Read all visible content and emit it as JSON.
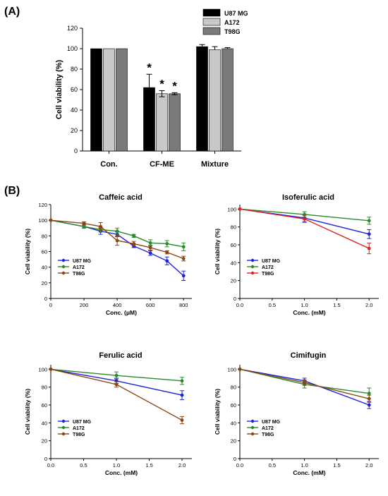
{
  "panels": {
    "a": "(A)",
    "b": "(B)"
  },
  "chart_data": [
    {
      "type": "bar",
      "title": "",
      "xlabel": "",
      "ylabel": "Cell viability (%)",
      "ylim": [
        0,
        120
      ],
      "yticks": [
        0,
        20,
        40,
        60,
        80,
        100,
        120
      ],
      "categories": [
        "Con.",
        "CF-ME",
        "Mixture"
      ],
      "series": [
        {
          "name": "U87 MG",
          "color": "#000000",
          "values": [
            100,
            62,
            102
          ],
          "errors": [
            0,
            13,
            2
          ]
        },
        {
          "name": "A172",
          "color": "#c8c8c8",
          "values": [
            100,
            56,
            99
          ],
          "errors": [
            0,
            3,
            3
          ]
        },
        {
          "name": "T98G",
          "color": "#7a7a7a",
          "values": [
            100,
            56,
            100
          ],
          "errors": [
            0,
            1,
            1
          ]
        }
      ],
      "annotations": [
        "*",
        "*",
        "*"
      ],
      "legend": "top-right"
    },
    {
      "type": "line",
      "title": "Caffeic acid",
      "xlabel": "Conc. (μM)",
      "ylabel": "Cell viability (%)",
      "xlim": [
        0,
        850
      ],
      "ylim": [
        0,
        120
      ],
      "xticks": [
        0,
        200,
        400,
        600,
        800
      ],
      "yticks": [
        0,
        20,
        40,
        60,
        80,
        100,
        120
      ],
      "x": [
        0,
        200,
        300,
        400,
        500,
        600,
        700,
        800
      ],
      "series": [
        {
          "name": "U87 MG",
          "color": "#2222dd",
          "values": [
            100,
            92,
            86,
            82,
            67,
            58,
            48,
            29
          ],
          "errors": [
            0,
            2,
            4,
            3,
            2,
            3,
            5,
            6
          ]
        },
        {
          "name": "A172",
          "color": "#2a8a2a",
          "values": [
            100,
            92,
            88,
            86,
            80,
            71,
            70,
            66
          ],
          "errors": [
            0,
            2,
            3,
            4,
            2,
            4,
            4,
            5
          ]
        },
        {
          "name": "T98G",
          "color": "#8b4513",
          "values": [
            100,
            96,
            92,
            74,
            70,
            65,
            59,
            51
          ],
          "errors": [
            0,
            2,
            5,
            6,
            3,
            3,
            2,
            3
          ]
        }
      ],
      "legend": "bottom-left"
    },
    {
      "type": "line",
      "title": "Isoferulic acid",
      "xlabel": "Conc. (mM)",
      "ylabel": "Cell viability (%)",
      "xlim": [
        0,
        2.15
      ],
      "ylim": [
        0,
        105
      ],
      "xticks": [
        "0.0",
        "0.5",
        "1.0",
        "1.5",
        "2.0"
      ],
      "yticks": [
        0,
        20,
        40,
        60,
        80,
        100
      ],
      "x": [
        0,
        1,
        2
      ],
      "series": [
        {
          "name": "U87 MG",
          "color": "#2222dd",
          "values": [
            100,
            90,
            72
          ],
          "errors": [
            0,
            4,
            5
          ]
        },
        {
          "name": "A172",
          "color": "#2a8a2a",
          "values": [
            100,
            94,
            87
          ],
          "errors": [
            0,
            3,
            4
          ]
        },
        {
          "name": "T98G",
          "color": "#dd2222",
          "values": [
            100,
            89,
            56
          ],
          "errors": [
            0,
            4,
            6
          ]
        }
      ],
      "legend": "bottom-left"
    },
    {
      "type": "line",
      "title": "Ferulic acid",
      "xlabel": "Conc. (mM)",
      "ylabel": "Cell viability (%)",
      "xlim": [
        0,
        2.15
      ],
      "ylim": [
        0,
        105
      ],
      "xticks": [
        "0.0",
        "0.5",
        "1.0",
        "1.5",
        "2.0"
      ],
      "yticks": [
        0,
        20,
        40,
        60,
        80,
        100
      ],
      "x": [
        0,
        1,
        2
      ],
      "series": [
        {
          "name": "U87 MG",
          "color": "#2222dd",
          "values": [
            100,
            87,
            71
          ],
          "errors": [
            0,
            3,
            5
          ]
        },
        {
          "name": "A172",
          "color": "#2a8a2a",
          "values": [
            100,
            93,
            87
          ],
          "errors": [
            0,
            4,
            4
          ]
        },
        {
          "name": "T98G",
          "color": "#8b4513",
          "values": [
            100,
            83,
            43
          ],
          "errors": [
            0,
            3,
            4
          ]
        }
      ],
      "legend": "bottom-left"
    },
    {
      "type": "line",
      "title": "Cimifugin",
      "xlabel": "Conc. (mM)",
      "ylabel": "Cell viability (%)",
      "xlim": [
        0,
        2.15
      ],
      "ylim": [
        0,
        105
      ],
      "xticks": [
        "0.0",
        "0.5",
        "1.0",
        "1.5",
        "2.0"
      ],
      "yticks": [
        0,
        20,
        40,
        60,
        80,
        100
      ],
      "x": [
        0,
        1,
        2
      ],
      "series": [
        {
          "name": "U87 MG",
          "color": "#2222dd",
          "values": [
            100,
            87,
            60
          ],
          "errors": [
            0,
            3,
            4
          ]
        },
        {
          "name": "A172",
          "color": "#2a8a2a",
          "values": [
            100,
            83,
            73
          ],
          "errors": [
            0,
            4,
            6
          ]
        },
        {
          "name": "T98G",
          "color": "#8b4513",
          "values": [
            100,
            85,
            67
          ],
          "errors": [
            0,
            3,
            4
          ]
        }
      ],
      "legend": "bottom-left"
    }
  ]
}
